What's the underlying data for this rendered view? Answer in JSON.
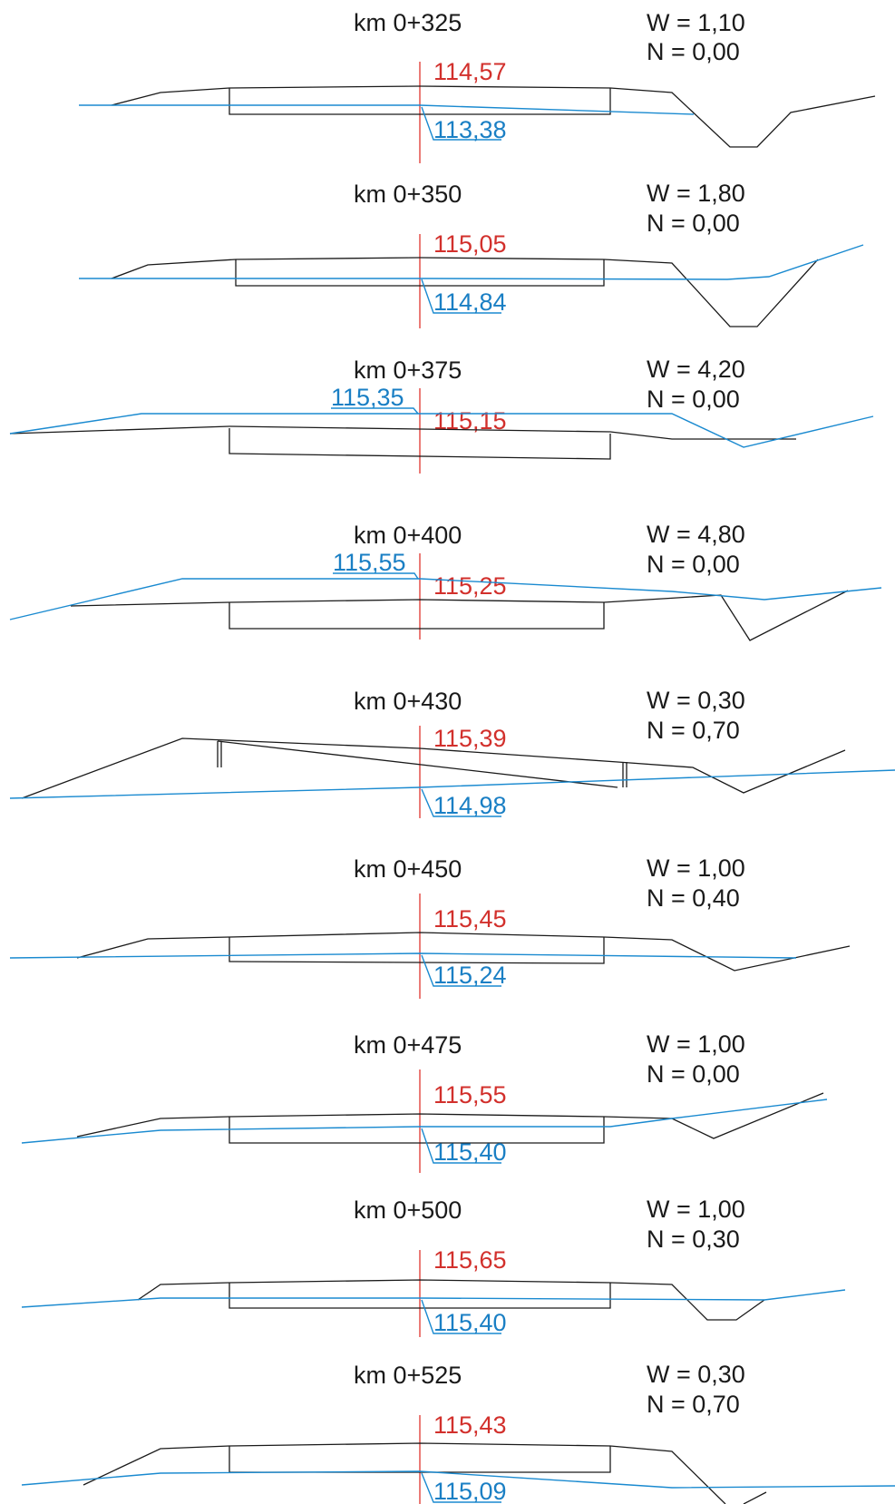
{
  "sections": [
    {
      "station": "km 0+325",
      "w": "W = 1,10",
      "n": "N  = 0,00",
      "design_elev": "114,57",
      "ground_elev": "113,38"
    },
    {
      "station": "km 0+350",
      "w": "W = 1,80",
      "n": "N  = 0,00",
      "design_elev": "115,05",
      "ground_elev": "114,84"
    },
    {
      "station": "km 0+375",
      "w": "W = 4,20",
      "n": "N  = 0,00",
      "design_elev": "115,15",
      "ground_elev": "115,35"
    },
    {
      "station": "km 0+400",
      "w": "W = 4,80",
      "n": "N  = 0,00",
      "design_elev": "115,25",
      "ground_elev": "115,55"
    },
    {
      "station": "km 0+430",
      "w": "W = 0,30",
      "n": "N  = 0,70",
      "design_elev": "115,39",
      "ground_elev": "114,98"
    },
    {
      "station": "km 0+450",
      "w": "W = 1,00",
      "n": "N  = 0,40",
      "design_elev": "115,45",
      "ground_elev": "115,24"
    },
    {
      "station": "km 0+475",
      "w": "W = 1,00",
      "n": "N  = 0,00",
      "design_elev": "115,55",
      "ground_elev": "115,40"
    },
    {
      "station": "km 0+500",
      "w": "W = 1,00",
      "n": "N  = 0,30",
      "design_elev": "115,65",
      "ground_elev": "115,40"
    },
    {
      "station": "km 0+525",
      "w": "W = 0,30",
      "n": "N  = 0,70",
      "design_elev": "115,43",
      "ground_elev": "115,09"
    }
  ],
  "colors": {
    "design": "#d2302c",
    "ground": "#1a7fc4",
    "outline": "#1a1a1a"
  }
}
